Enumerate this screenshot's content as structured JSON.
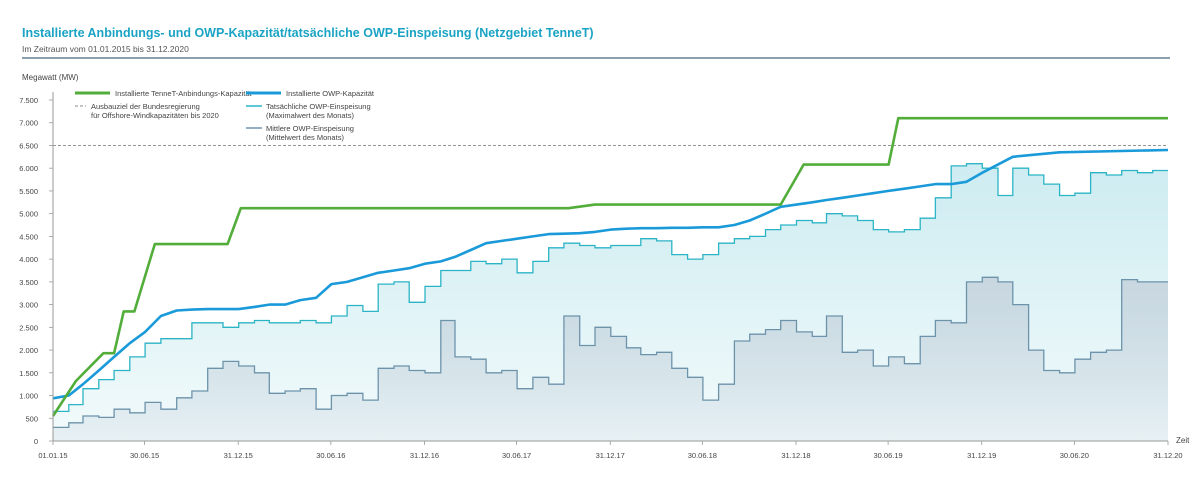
{
  "header": {
    "title": "Installierte Anbindungs- und OWP-Kapazität/tatsächliche OWP-Einspeisung (Netzgebiet TenneT)",
    "subtitle": "Im Zeitraum vom 01.01.2015 bis 31.12.2020"
  },
  "colors": {
    "anbindung": "#52ad3a",
    "owp_kapazitaet": "#1a9ad9",
    "max_einspeisung": "#2bb4c5",
    "max_fill": "#cdecf1",
    "mittel_einspeisung": "#6d93ab",
    "mittel_fill": "#c7d6df",
    "ziel": "#888888",
    "axis": "#999999"
  },
  "chart_data": {
    "type": "line",
    "title": "Installierte Anbindungs- und OWP-Kapazität/tatsächliche OWP-Einspeisung (Netzgebiet TenneT)",
    "subtitle": "Im Zeitraum vom 01.01.2015 bis 31.12.2020",
    "ylabel": "Megawatt (MW)",
    "xlabel": "Zeit",
    "ylim": [
      0,
      7500
    ],
    "xlim": [
      "2015-01-01",
      "2020-12-31"
    ],
    "yticks": [
      0,
      500,
      1000,
      1500,
      2000,
      2500,
      3000,
      3500,
      4000,
      4500,
      5000,
      5500,
      6000,
      6500,
      7000,
      7500
    ],
    "ytick_labels": [
      "0",
      "500",
      "1.000",
      "1.500",
      "2.000",
      "2.500",
      "3.000",
      "3.500",
      "4.000",
      "4.500",
      "5.000",
      "5.500",
      "6.000",
      "6.500",
      "7.000",
      "7.500"
    ],
    "xticks": [
      "2015-01-01",
      "2015-06-30",
      "2015-12-31",
      "2016-06-30",
      "2016-12-31",
      "2017-06-30",
      "2017-12-31",
      "2018-06-30",
      "2018-12-31",
      "2019-06-30",
      "2019-12-31",
      "2020-06-30",
      "2020-12-31"
    ],
    "xtick_labels": [
      "01.01.15",
      "30.06.15",
      "31.12.15",
      "30.06.16",
      "31.12.16",
      "30.06.17",
      "31.12.17",
      "30.06.18",
      "31.12.18",
      "30.06.19",
      "31.12.19",
      "30.06.20",
      "31.12.20"
    ],
    "grid": false,
    "legend_position": "top-left",
    "reference_line": {
      "name": "Ausbauziel der Bundesregierung für Offshore-Windkapazitäten bis 2020",
      "value": 6500
    },
    "series": [
      {
        "name": "Installierte TenneT-Anbindungs-Kapazität",
        "style": "line",
        "x": [
          "2015-01-01",
          "2015-02-15",
          "2015-04-10",
          "2015-05-01",
          "2015-05-20",
          "2015-06-10",
          "2015-07-20",
          "2015-12-10",
          "2016-01-05",
          "2017-10-10",
          "2017-12-01",
          "2018-12-01",
          "2019-01-15",
          "2019-07-01",
          "2019-07-20",
          "2020-12-31"
        ],
        "values": [
          550,
          1320,
          1930,
          1930,
          2850,
          2850,
          4330,
          4330,
          5120,
          5120,
          5200,
          5200,
          6080,
          6080,
          7100,
          7100
        ]
      },
      {
        "name": "Installierte OWP-Kapazität",
        "style": "line",
        "x": [
          "2015-01-01",
          "2015-02-01",
          "2015-03-01",
          "2015-04-01",
          "2015-05-01",
          "2015-06-01",
          "2015-07-01",
          "2015-08-01",
          "2015-09-01",
          "2015-10-01",
          "2015-11-01",
          "2015-12-01",
          "2016-01-01",
          "2016-02-01",
          "2016-03-01",
          "2016-04-01",
          "2016-05-01",
          "2016-06-01",
          "2016-07-01",
          "2016-08-01",
          "2016-09-01",
          "2016-10-01",
          "2016-11-01",
          "2016-12-01",
          "2017-01-01",
          "2017-02-01",
          "2017-03-01",
          "2017-04-01",
          "2017-05-01",
          "2017-06-01",
          "2017-07-01",
          "2017-08-01",
          "2017-09-01",
          "2017-10-01",
          "2017-11-01",
          "2017-12-01",
          "2018-01-01",
          "2018-02-01",
          "2018-03-01",
          "2018-04-01",
          "2018-05-01",
          "2018-06-01",
          "2018-07-01",
          "2018-08-01",
          "2018-09-01",
          "2018-10-01",
          "2018-11-01",
          "2018-12-01",
          "2019-01-01",
          "2019-02-01",
          "2019-03-01",
          "2019-04-01",
          "2019-05-01",
          "2019-06-01",
          "2019-07-01",
          "2019-08-01",
          "2019-09-01",
          "2019-10-01",
          "2019-11-01",
          "2019-12-01",
          "2020-01-01",
          "2020-03-01",
          "2020-06-01",
          "2020-12-31"
        ],
        "values": [
          940,
          1000,
          1250,
          1550,
          1850,
          2150,
          2400,
          2750,
          2870,
          2890,
          2900,
          2900,
          2900,
          2950,
          3000,
          3000,
          3100,
          3150,
          3450,
          3500,
          3600,
          3700,
          3750,
          3800,
          3900,
          3950,
          4050,
          4200,
          4350,
          4400,
          4450,
          4500,
          4550,
          4560,
          4570,
          4600,
          4650,
          4670,
          4680,
          4680,
          4690,
          4690,
          4700,
          4700,
          4750,
          4850,
          5000,
          5150,
          5200,
          5250,
          5300,
          5350,
          5400,
          5450,
          5500,
          5550,
          5600,
          5650,
          5650,
          5700,
          5900,
          6250,
          6350,
          6400
        ]
      },
      {
        "name": "Tatsächliche OWP-Einspeisung (Maximalwert des Monats)",
        "style": "step-area",
        "x_start": "2015-01-01",
        "step": "month",
        "values": [
          650,
          800,
          1150,
          1350,
          1550,
          1850,
          2150,
          2250,
          2250,
          2600,
          2600,
          2500,
          2600,
          2650,
          2600,
          2600,
          2650,
          2600,
          2750,
          2980,
          2850,
          3450,
          3500,
          3050,
          3400,
          3750,
          3750,
          3950,
          3900,
          4000,
          3700,
          3950,
          4250,
          4350,
          4300,
          4250,
          4300,
          4300,
          4450,
          4400,
          4100,
          4000,
          4100,
          4350,
          4450,
          4500,
          4650,
          4750,
          4850,
          4800,
          5000,
          4950,
          4850,
          4650,
          4600,
          4650,
          4900,
          5350,
          6050,
          6100,
          6000,
          5400,
          6000,
          5850,
          5650,
          5400,
          5450,
          5900,
          5850,
          5950,
          5900,
          5950
        ]
      },
      {
        "name": "Mittlere OWP-Einspeisung (Mittelwert des Monats)",
        "style": "step-area",
        "x_start": "2015-01-01",
        "step": "month",
        "values": [
          300,
          400,
          550,
          520,
          700,
          620,
          850,
          700,
          950,
          1100,
          1600,
          1750,
          1650,
          1500,
          1050,
          1100,
          1150,
          700,
          1000,
          1050,
          900,
          1600,
          1650,
          1550,
          1500,
          2650,
          1850,
          1800,
          1500,
          1550,
          1150,
          1400,
          1250,
          2750,
          2100,
          2500,
          2300,
          2050,
          1900,
          1950,
          1600,
          1400,
          900,
          1250,
          2200,
          2350,
          2450,
          2650,
          2400,
          2300,
          2750,
          1950,
          2000,
          1650,
          1850,
          1700,
          2300,
          2650,
          2600,
          3500,
          3600,
          3500,
          3000,
          2000,
          1550,
          1500,
          1800,
          1950,
          2000,
          3550,
          3500,
          3500
        ]
      }
    ]
  },
  "legend": {
    "anbindung": "Installierte TenneT-Anbindungs-Kapazität",
    "ziel_line1": "Ausbauziel der Bundesregierung",
    "ziel_line2": "für Offshore-Windkapazitäten bis 2020",
    "owp": "Installierte OWP-Kapazität",
    "max_line1": "Tatsächliche OWP-Einspeisung",
    "max_line2": "(Maximalwert des Monats)",
    "mittel_line1": "Mittlere OWP-Einspeisung",
    "mittel_line2": "(Mittelwert des Monats)"
  }
}
